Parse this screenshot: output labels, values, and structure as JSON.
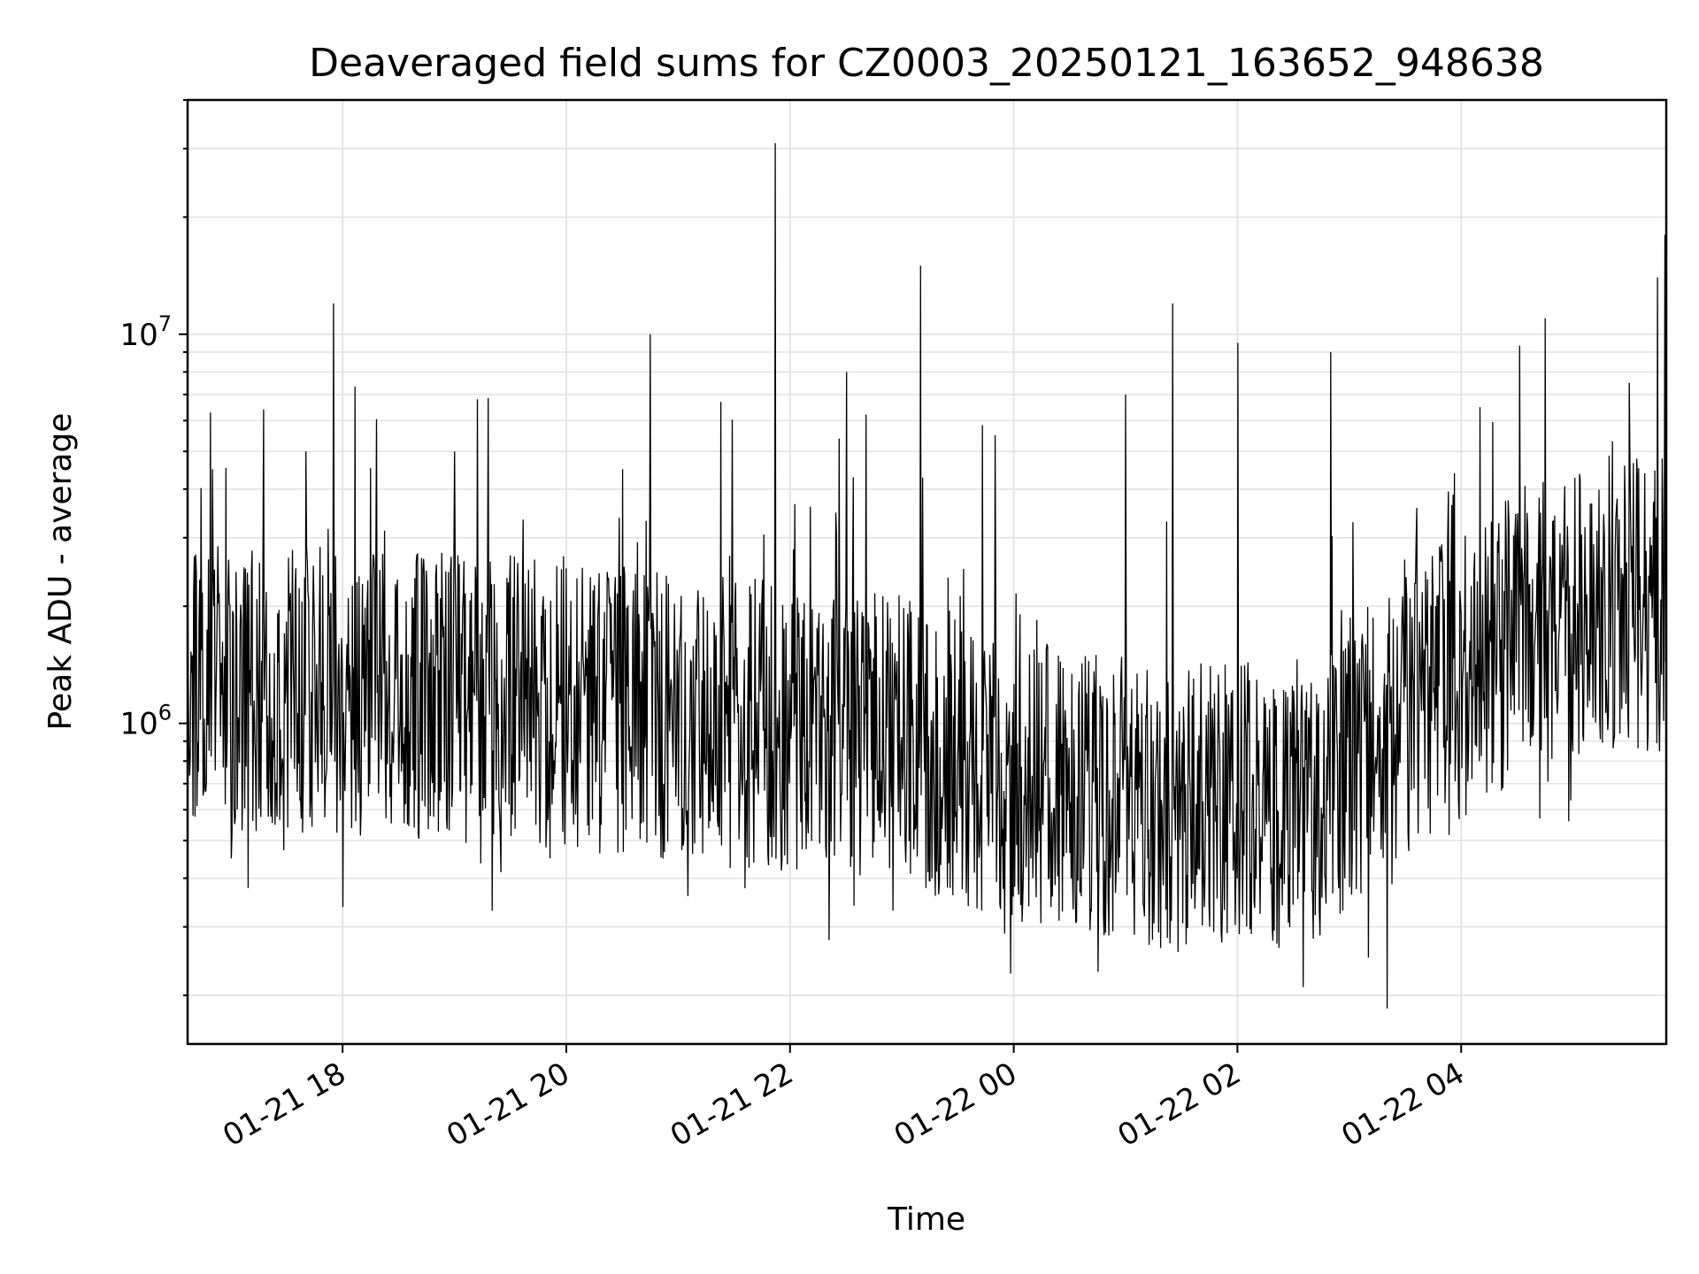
{
  "chart_data": {
    "type": "line",
    "title": "Deaveraged field sums for CZ0003_20250121_163652_948638",
    "xlabel": "Time",
    "ylabel": "Peak ADU - average",
    "y_scale": "log",
    "ylim": [
      150000,
      40000000
    ],
    "xlim": [
      "2025-01-21 16:36:52",
      "2025-01-22 05:50:00"
    ],
    "grid": true,
    "line_color": "#000000",
    "x_ticks": [
      {
        "label": "01-21 18",
        "time": "2025-01-21 18:00"
      },
      {
        "label": "01-21 20",
        "time": "2025-01-21 20:00"
      },
      {
        "label": "01-21 22",
        "time": "2025-01-21 22:00"
      },
      {
        "label": "01-22 00",
        "time": "2025-01-22 00:00"
      },
      {
        "label": "01-22 02",
        "time": "2025-01-22 02:00"
      },
      {
        "label": "01-22 04",
        "time": "2025-01-22 04:00"
      }
    ],
    "y_ticks": [
      {
        "base": "10",
        "exp": "6",
        "value": 1000000
      },
      {
        "base": "10",
        "exp": "7",
        "value": 10000000
      }
    ],
    "series": [
      {
        "points": [
          [
            "2025-01-21 16:37",
            1300000
          ],
          [
            "2025-01-21 16:50",
            4500000
          ],
          [
            "2025-01-21 17:00",
            450000
          ],
          [
            "2025-01-21 17:10",
            1200000
          ],
          [
            "2025-01-21 17:40",
            5000000
          ],
          [
            "2025-01-21 17:55",
            12000000
          ],
          [
            "2025-01-21 18:10",
            1300000
          ],
          [
            "2025-01-21 18:30",
            700000
          ],
          [
            "2025-01-21 19:00",
            5000000
          ],
          [
            "2025-01-21 19:20",
            330000
          ],
          [
            "2025-01-21 19:40",
            1100000
          ],
          [
            "2025-01-21 20:00",
            900000
          ],
          [
            "2025-01-21 20:30",
            4500000
          ],
          [
            "2025-01-21 20:45",
            10000000
          ],
          [
            "2025-01-21 21:05",
            360000
          ],
          [
            "2025-01-21 21:30",
            1000000
          ],
          [
            "2025-01-21 21:52",
            31000000
          ],
          [
            "2025-01-21 22:10",
            800000
          ],
          [
            "2025-01-21 22:30",
            8000000
          ],
          [
            "2025-01-21 22:55",
            330000
          ],
          [
            "2025-01-21 23:10",
            15000000
          ],
          [
            "2025-01-21 23:30",
            900000
          ],
          [
            "2025-01-21 23:50",
            5500000
          ],
          [
            "2025-01-22 00:10",
            400000
          ],
          [
            "2025-01-22 00:45",
            230000
          ],
          [
            "2025-01-22 01:00",
            7000000
          ],
          [
            "2025-01-22 01:25",
            12000000
          ],
          [
            "2025-01-22 01:45",
            300000
          ],
          [
            "2025-01-22 02:00",
            9500000
          ],
          [
            "2025-01-22 02:35",
            210000
          ],
          [
            "2025-01-22 02:50",
            9000000
          ],
          [
            "2025-01-22 03:10",
            250000
          ],
          [
            "2025-01-22 03:20",
            185000
          ],
          [
            "2025-01-22 03:45",
            1200000
          ],
          [
            "2025-01-22 04:10",
            6500000
          ],
          [
            "2025-01-22 04:45",
            11000000
          ],
          [
            "2025-01-22 05:10",
            2000000
          ],
          [
            "2025-01-22 05:30",
            7500000
          ],
          [
            "2025-01-22 05:45",
            14000000
          ],
          [
            "2025-01-22 05:49",
            18000000
          ]
        ]
      }
    ]
  }
}
